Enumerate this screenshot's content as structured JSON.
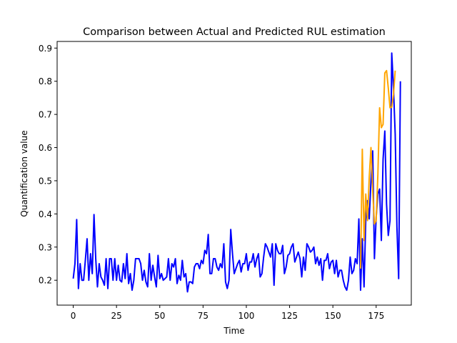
{
  "chart_data": {
    "type": "line",
    "title": "Comparison between Actual and Predicted RUL estimation",
    "xlabel": "Time",
    "ylabel": "Quantification value",
    "xlim": [
      -9.3,
      195.3
    ],
    "ylim": [
      0.125,
      0.92
    ],
    "grid": false,
    "x_ticks": [
      0,
      25,
      50,
      75,
      100,
      125,
      150,
      175
    ],
    "y_ticks": [
      0.2,
      0.3,
      0.4,
      0.5,
      0.6,
      0.7,
      0.8,
      0.9
    ],
    "x_tick_labels": [
      "0",
      "25",
      "50",
      "75",
      "100",
      "125",
      "150",
      "175"
    ],
    "y_tick_labels": [
      "0.2",
      "0.3",
      "0.4",
      "0.5",
      "0.6",
      "0.7",
      "0.8",
      "0.9"
    ],
    "series": [
      {
        "color": "#0000ff",
        "x_start": 0,
        "values": [
          0.205,
          0.25,
          0.383,
          0.175,
          0.25,
          0.2,
          0.2,
          0.26,
          0.325,
          0.2,
          0.28,
          0.22,
          0.398,
          0.265,
          0.18,
          0.25,
          0.21,
          0.2,
          0.185,
          0.265,
          0.175,
          0.265,
          0.265,
          0.2,
          0.265,
          0.2,
          0.245,
          0.2,
          0.195,
          0.25,
          0.205,
          0.28,
          0.19,
          0.22,
          0.17,
          0.2,
          0.265,
          0.265,
          0.265,
          0.25,
          0.2,
          0.23,
          0.195,
          0.18,
          0.28,
          0.2,
          0.245,
          0.21,
          0.18,
          0.275,
          0.205,
          0.22,
          0.2,
          0.205,
          0.21,
          0.265,
          0.2,
          0.25,
          0.24,
          0.265,
          0.19,
          0.215,
          0.2,
          0.26,
          0.21,
          0.22,
          0.165,
          0.195,
          0.195,
          0.19,
          0.24,
          0.25,
          0.25,
          0.235,
          0.26,
          0.25,
          0.29,
          0.28,
          0.338,
          0.22,
          0.22,
          0.265,
          0.265,
          0.24,
          0.23,
          0.25,
          0.238,
          0.31,
          0.195,
          0.175,
          0.2,
          0.353,
          0.28,
          0.22,
          0.235,
          0.25,
          0.26,
          0.225,
          0.25,
          0.25,
          0.28,
          0.23,
          0.255,
          0.255,
          0.28,
          0.24,
          0.265,
          0.28,
          0.21,
          0.22,
          0.27,
          0.31,
          0.3,
          0.285,
          0.27,
          0.31,
          0.185,
          0.31,
          0.29,
          0.28,
          0.28,
          0.305,
          0.22,
          0.24,
          0.275,
          0.28,
          0.3,
          0.31,
          0.255,
          0.27,
          0.285,
          0.265,
          0.21,
          0.27,
          0.23,
          0.31,
          0.3,
          0.285,
          0.29,
          0.3,
          0.25,
          0.27,
          0.245,
          0.265,
          0.2,
          0.26,
          0.26,
          0.28,
          0.235,
          0.255,
          0.26,
          0.22,
          0.26,
          0.21,
          0.23,
          0.23,
          0.2,
          0.18,
          0.17,
          0.2,
          0.27,
          0.22,
          0.23,
          0.265,
          0.25,
          0.385,
          0.17,
          0.325,
          0.18,
          0.385,
          0.44,
          0.385,
          0.5,
          0.59,
          0.265,
          0.39,
          0.46,
          0.475,
          0.32,
          0.565,
          0.65,
          0.43,
          0.335,
          0.38,
          0.885,
          0.78,
          0.64,
          0.36,
          0.205,
          0.8
        ]
      },
      {
        "color": "#ffa500",
        "x": [
          166,
          167,
          168,
          169,
          170,
          171,
          172,
          173,
          174,
          175,
          176,
          177,
          178,
          179,
          180,
          181,
          182,
          183,
          184,
          185,
          186
        ],
        "values": [
          0.235,
          0.595,
          0.32,
          0.46,
          0.38,
          0.51,
          0.6,
          0.47,
          0.37,
          0.38,
          0.52,
          0.72,
          0.66,
          0.67,
          0.825,
          0.832,
          0.78,
          0.72,
          0.722,
          0.76,
          0.832
        ]
      }
    ]
  }
}
